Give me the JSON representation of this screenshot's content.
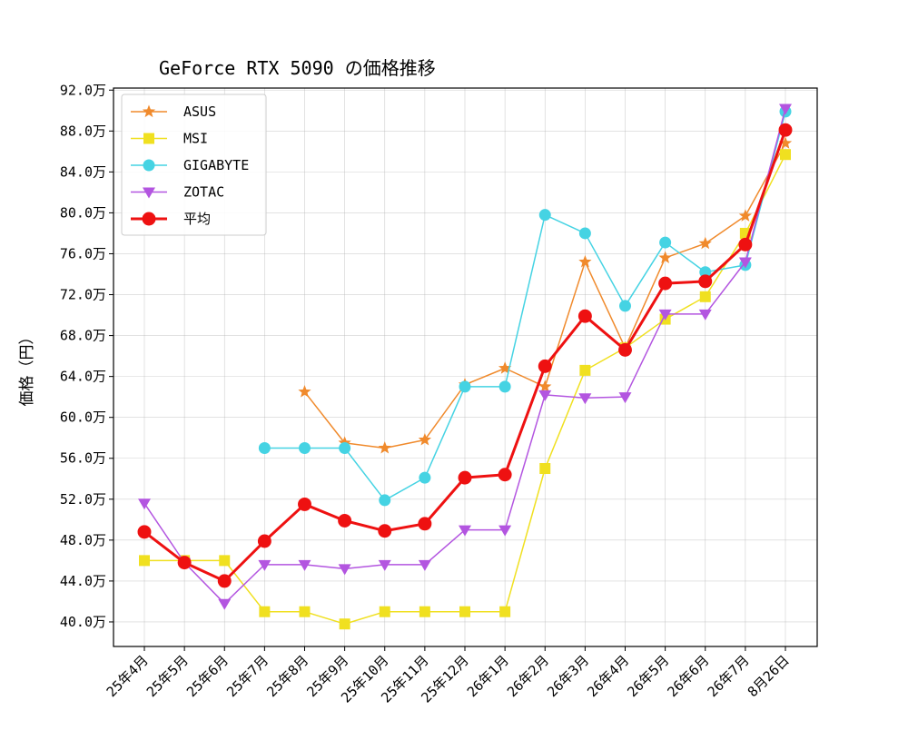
{
  "chart_data": {
    "type": "line",
    "title": "GeForce RTX 5090 の価格推移",
    "xlabel": "",
    "ylabel": "価格（円）",
    "categories": [
      "25年4月",
      "25年5月",
      "25年6月",
      "25年7月",
      "25年8月",
      "25年9月",
      "25年10月",
      "25年11月",
      "25年12月",
      "26年1月",
      "26年2月",
      "26年3月",
      "26年4月",
      "26年5月",
      "26年6月",
      "26年7月",
      "8月26日"
    ],
    "ylim": [
      37.6,
      92.2
    ],
    "yticks": [
      40,
      44,
      48,
      52,
      56,
      60,
      64,
      68,
      72,
      76,
      80,
      84,
      88,
      92
    ],
    "ytick_labels": [
      "40.0万",
      "44.0万",
      "48.0万",
      "52.0万",
      "56.0万",
      "60.0万",
      "64.0万",
      "68.0万",
      "72.0万",
      "76.0万",
      "80.0万",
      "84.0万",
      "88.0万",
      "92.0万"
    ],
    "grid": true,
    "legend_position": "top-left",
    "series": [
      {
        "name": "ASUS",
        "color": "#f08a2c",
        "marker": "star",
        "linewidth": 1.5,
        "values": [
          null,
          null,
          null,
          null,
          62.5,
          57.5,
          57.0,
          57.8,
          63.2,
          64.8,
          63.0,
          75.2,
          66.8,
          75.6,
          77.0,
          79.7,
          86.8
        ]
      },
      {
        "name": "MSI",
        "color": "#f0e020",
        "marker": "square",
        "linewidth": 1.5,
        "values": [
          46.0,
          46.0,
          46.0,
          41.0,
          41.0,
          39.8,
          41.0,
          41.0,
          41.0,
          41.0,
          55.0,
          64.6,
          66.8,
          69.6,
          71.8,
          78.0,
          85.7
        ]
      },
      {
        "name": "GIGABYTE",
        "color": "#45d3e3",
        "marker": "circle",
        "linewidth": 1.5,
        "values": [
          null,
          null,
          null,
          57.0,
          57.0,
          57.0,
          51.9,
          54.1,
          63.0,
          63.0,
          79.8,
          78.0,
          70.9,
          77.1,
          74.2,
          74.9,
          89.9
        ]
      },
      {
        "name": "ZOTAC",
        "color": "#b355e0",
        "marker": "triangle-down",
        "linewidth": 1.5,
        "values": [
          51.6,
          45.8,
          41.8,
          45.6,
          45.6,
          45.2,
          45.6,
          45.6,
          49.0,
          49.0,
          62.2,
          61.9,
          62.0,
          70.1,
          70.1,
          75.2,
          90.2
        ]
      },
      {
        "name": "平均",
        "color": "#ee1111",
        "marker": "circle",
        "linewidth": 3,
        "values": [
          48.8,
          45.8,
          44.0,
          47.9,
          51.5,
          49.9,
          48.9,
          49.6,
          54.1,
          54.4,
          65.0,
          69.9,
          66.6,
          73.1,
          73.3,
          76.9,
          88.1
        ]
      }
    ]
  }
}
